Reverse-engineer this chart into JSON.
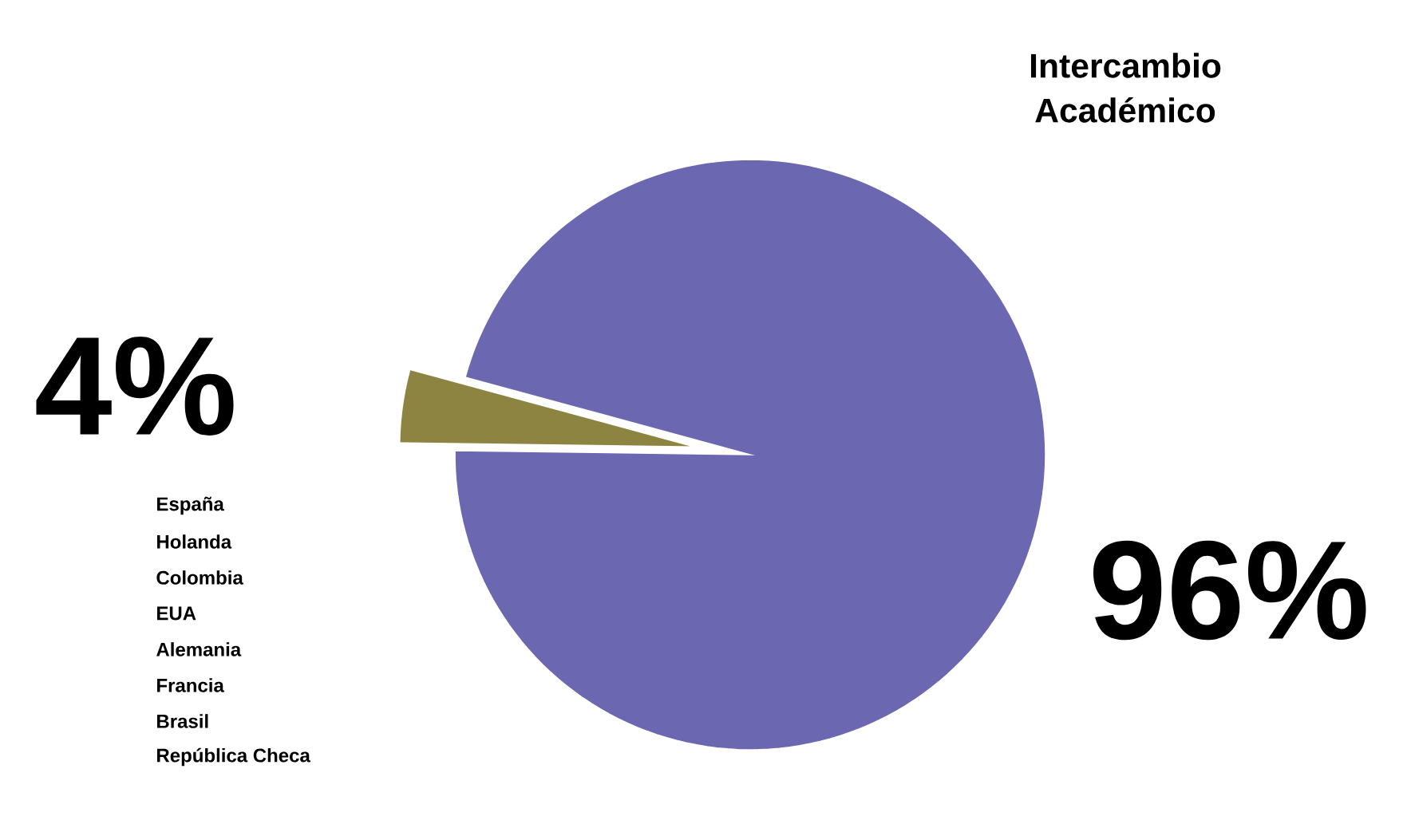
{
  "chart_data": {
    "type": "pie",
    "title": "Intercambio Académico",
    "categories": [
      null,
      null
    ],
    "values": [
      96,
      4
    ],
    "colors": [
      "#6b67b0",
      "#8c8440"
    ],
    "value_labels": [
      "96%",
      "4%"
    ],
    "annotations": [
      "España",
      "Holanda",
      "Colombia",
      "EUA",
      "Alemania",
      "Francia",
      "Brasil",
      "República Checa"
    ]
  }
}
